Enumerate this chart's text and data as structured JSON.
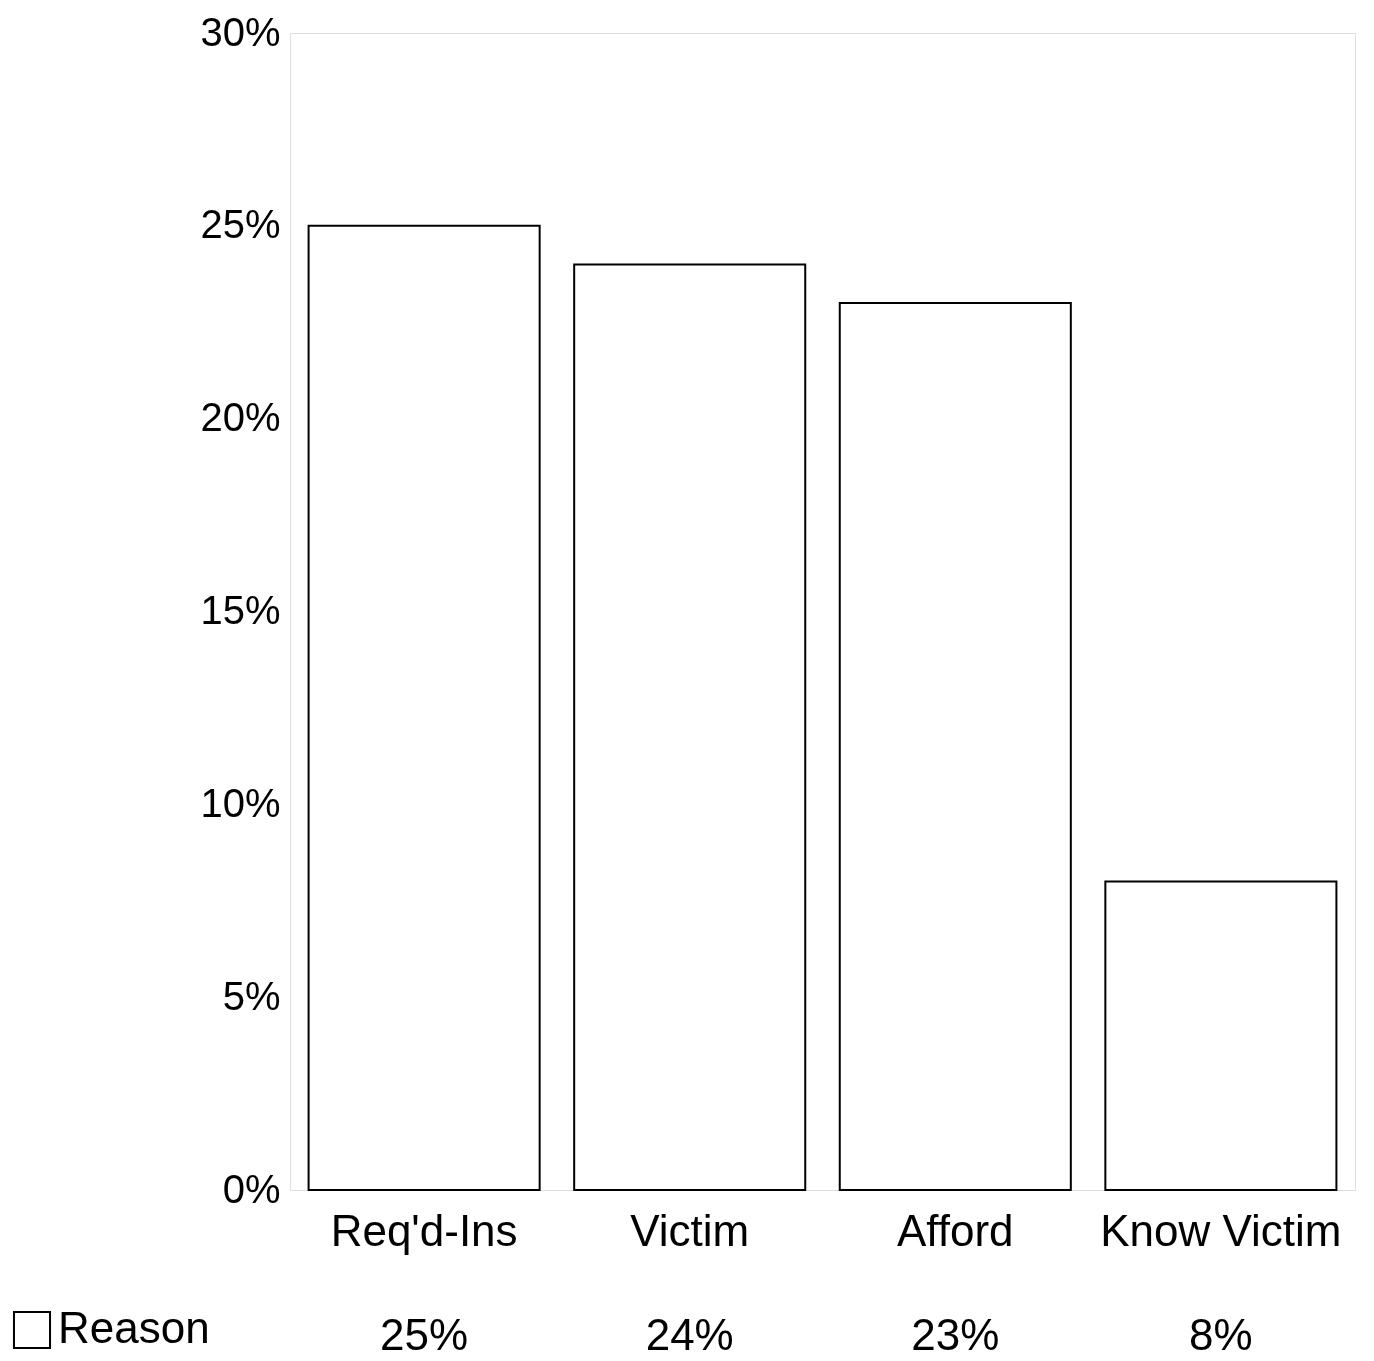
{
  "chart_data": {
    "type": "bar",
    "categories": [
      "Req'd-Ins",
      "Victim",
      "Afford",
      "Know Victim"
    ],
    "series": [
      {
        "name": "Reason",
        "color": "#ffffff",
        "values": [
          25,
          24,
          23,
          8
        ],
        "value_labels": [
          "25%",
          "24%",
          "23%",
          "8%"
        ]
      }
    ],
    "ylim": [
      0,
      30
    ],
    "yticks": [
      {
        "value": 0,
        "label": "0%"
      },
      {
        "value": 5,
        "label": "5%"
      },
      {
        "value": 10,
        "label": "10%"
      },
      {
        "value": 15,
        "label": "15%"
      },
      {
        "value": 20,
        "label": "20%"
      },
      {
        "value": 25,
        "label": "25%"
      },
      {
        "value": 30,
        "label": "30%"
      }
    ],
    "legend": "bottom left",
    "grid": false
  }
}
